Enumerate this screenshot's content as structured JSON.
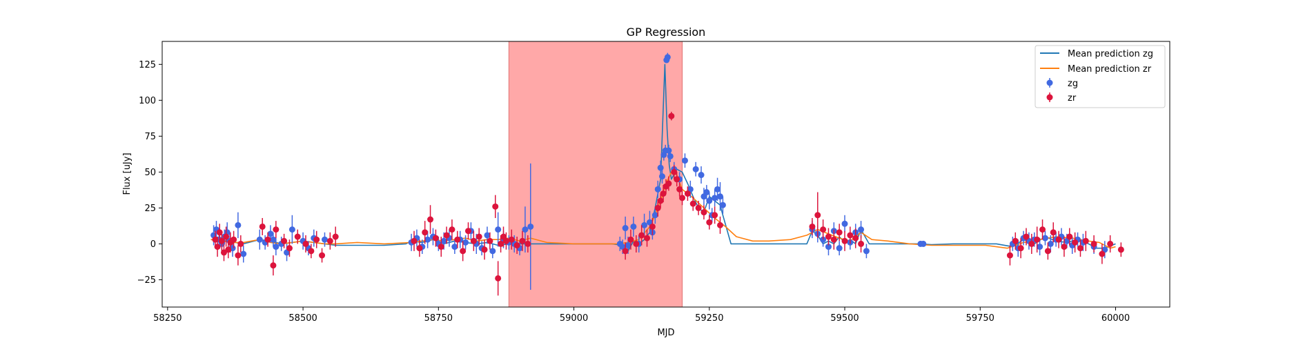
{
  "chart_data": {
    "type": "line",
    "title": "GP Regression",
    "xlabel": "MJD",
    "ylabel": "Flux [uJy]",
    "xlim": [
      58240,
      60100
    ],
    "ylim": [
      -44,
      141
    ],
    "xticks": [
      58250,
      58500,
      58750,
      59000,
      59250,
      59500,
      59750,
      60000
    ],
    "yticks": [
      -25,
      0,
      25,
      50,
      75,
      100,
      125
    ],
    "grid": false,
    "legend_position": "top-right",
    "shaded_region": {
      "x": [
        58880,
        59200
      ],
      "color": "#ffa8a8"
    },
    "series": [
      {
        "name": "Mean prediction zg",
        "kind": "line",
        "color": "#1f77b4",
        "x": [
          58330,
          58360,
          58390,
          58400,
          58420,
          58440,
          58460,
          58480,
          58500,
          58520,
          58540,
          58560,
          58600,
          58650,
          58690,
          58700,
          58720,
          58740,
          58760,
          58780,
          58800,
          58820,
          58840,
          58860,
          58880,
          58900,
          58915,
          58940,
          58980,
          59040,
          59070,
          59090,
          59100,
          59110,
          59120,
          59130,
          59140,
          59150,
          59160,
          59168,
          59172,
          59176,
          59180,
          59190,
          59200,
          59210,
          59220,
          59230,
          59240,
          59250,
          59260,
          59270,
          59275,
          59290,
          59320,
          59400,
          59430,
          59440,
          59450,
          59460,
          59470,
          59480,
          59490,
          59500,
          59510,
          59520,
          59530,
          59545,
          59570,
          59620,
          59640,
          59660,
          59700,
          59780,
          59810,
          59830,
          59850,
          59870,
          59890,
          59910,
          59930,
          59950,
          59965,
          59980,
          60000
        ],
        "y": [
          3,
          2,
          0,
          1,
          3,
          2,
          0,
          1,
          2,
          1,
          0,
          -1,
          -1,
          -1,
          0,
          2,
          1,
          3,
          0,
          2,
          1,
          0,
          1,
          -1,
          0,
          0,
          0,
          0,
          0,
          0,
          0,
          -1,
          -5,
          2,
          0,
          3,
          8,
          25,
          45,
          125,
          80,
          55,
          45,
          52,
          50,
          42,
          33,
          25,
          22,
          33,
          30,
          27,
          20,
          0,
          0,
          0,
          0,
          9,
          6,
          0,
          2,
          0,
          5,
          1,
          3,
          0,
          10,
          0,
          0,
          0,
          0,
          -0.5,
          0,
          0,
          -2,
          3,
          0,
          5,
          2,
          1,
          3,
          0,
          -3,
          -3,
          0
        ]
      },
      {
        "name": "Mean prediction zr",
        "kind": "line",
        "color": "#ff7f0e",
        "x": [
          58330,
          58350,
          58370,
          58390,
          58420,
          58440,
          58460,
          58480,
          58500,
          58520,
          58540,
          58560,
          58600,
          58650,
          58700,
          58720,
          58740,
          58760,
          58780,
          58800,
          58820,
          58840,
          58860,
          58880,
          58900,
          58920,
          58950,
          59000,
          59050,
          59080,
          59100,
          59120,
          59140,
          59150,
          59160,
          59170,
          59180,
          59190,
          59200,
          59220,
          59240,
          59260,
          59280,
          59300,
          59330,
          59360,
          59400,
          59430,
          59450,
          59470,
          59490,
          59510,
          59530,
          59550,
          59580,
          59620,
          59660,
          59700,
          59760,
          59800,
          59830,
          59860,
          59890,
          59920,
          59950,
          59970,
          59990,
          60000
        ],
        "y": [
          3,
          2,
          1,
          1,
          3,
          1,
          0,
          1,
          2,
          1,
          0,
          0,
          1,
          0,
          1,
          2,
          3,
          2,
          3,
          4,
          2,
          3,
          3,
          4,
          2,
          4,
          1,
          0,
          0,
          0,
          1,
          3,
          12,
          20,
          30,
          42,
          50,
          48,
          38,
          32,
          25,
          18,
          12,
          5,
          2,
          2,
          3,
          6,
          10,
          7,
          4,
          2,
          8,
          3,
          2,
          0,
          -1,
          -1,
          -1,
          -3,
          1,
          3,
          5,
          4,
          2,
          1,
          -3,
          -2
        ]
      },
      {
        "name": "zg",
        "kind": "errorbar",
        "color": "#4169e1",
        "x": [
          58335,
          58340,
          58345,
          58350,
          58355,
          58360,
          58365,
          58370,
          58380,
          58390,
          58420,
          58430,
          58440,
          58445,
          58450,
          58460,
          58470,
          58480,
          58500,
          58510,
          58520,
          58540,
          58700,
          58710,
          58720,
          58730,
          58740,
          58750,
          58760,
          58770,
          58780,
          58790,
          58800,
          58810,
          58820,
          58830,
          58840,
          58850,
          58860,
          58870,
          58880,
          58890,
          58900,
          58910,
          58920,
          59085,
          59090,
          59095,
          59100,
          59110,
          59120,
          59130,
          59140,
          59145,
          59150,
          59155,
          59160,
          59163,
          59166,
          59169,
          59171,
          59173,
          59175,
          59178,
          59185,
          59195,
          59205,
          59215,
          59225,
          59235,
          59240,
          59245,
          59250,
          59255,
          59260,
          59265,
          59270,
          59275,
          59440,
          59450,
          59460,
          59470,
          59480,
          59490,
          59500,
          59510,
          59520,
          59530,
          59540,
          59640,
          59645,
          59810,
          59820,
          59830,
          59840,
          59850,
          59860,
          59870,
          59880,
          59890,
          59900,
          59910,
          59920,
          59930,
          59940,
          59960,
          59980
        ],
        "y": [
          6,
          10,
          3,
          0,
          5,
          8,
          2,
          -3,
          13,
          -7,
          3,
          1,
          7,
          3,
          -2,
          0,
          -6,
          10,
          2,
          -3,
          4,
          3,
          1,
          4,
          -2,
          3,
          5,
          0,
          2,
          4,
          -2,
          3,
          1,
          9,
          0,
          -3,
          6,
          -5,
          10,
          3,
          1,
          0,
          -3,
          10,
          12,
          0,
          -2,
          11,
          -1,
          12,
          0,
          13,
          15,
          8,
          20,
          38,
          53,
          47,
          62,
          65,
          128,
          130,
          65,
          61,
          52,
          45,
          58,
          38,
          52,
          48,
          33,
          36,
          30,
          20,
          32,
          38,
          33,
          27,
          10,
          7,
          3,
          -2,
          9,
          -3,
          14,
          1,
          8,
          10,
          -5,
          0,
          0,
          0,
          -3,
          4,
          2,
          3,
          -2,
          4,
          0,
          3,
          5,
          2,
          -1,
          3,
          1,
          -2,
          -4
        ],
        "yerr": [
          7,
          6,
          5,
          6,
          5,
          7,
          5,
          6,
          9,
          6,
          7,
          5,
          6,
          5,
          6,
          5,
          6,
          10,
          6,
          5,
          6,
          5,
          6,
          6,
          5,
          6,
          6,
          5,
          6,
          6,
          5,
          6,
          5,
          6,
          7,
          5,
          6,
          5,
          12,
          6,
          5,
          6,
          5,
          16,
          44,
          5,
          5,
          8,
          6,
          7,
          6,
          8,
          8,
          5,
          6,
          6,
          5,
          5,
          4,
          4,
          2,
          3,
          4,
          4,
          5,
          5,
          5,
          6,
          5,
          6,
          6,
          5,
          6,
          5,
          6,
          8,
          10,
          6,
          6,
          6,
          5,
          6,
          6,
          5,
          6,
          5,
          6,
          6,
          5,
          2,
          2,
          5,
          6,
          5,
          6,
          5,
          6,
          5,
          6,
          5,
          6,
          5,
          6,
          5,
          6,
          5,
          6
        ]
      },
      {
        "name": "zr",
        "kind": "errorbar",
        "color": "#dc143c",
        "x": [
          58338,
          58342,
          58346,
          58350,
          58354,
          58358,
          58362,
          58366,
          58372,
          58380,
          58385,
          58425,
          58435,
          58445,
          58450,
          58465,
          58475,
          58490,
          58505,
          58515,
          58525,
          58535,
          58550,
          58560,
          58705,
          58715,
          58725,
          58735,
          58745,
          58755,
          58765,
          58775,
          58785,
          58795,
          58805,
          58815,
          58825,
          58835,
          58845,
          58855,
          58860,
          58865,
          58870,
          58875,
          58885,
          58895,
          58905,
          58915,
          59095,
          59105,
          59115,
          59125,
          59135,
          59145,
          59155,
          59160,
          59165,
          59170,
          59175,
          59180,
          59185,
          59190,
          59195,
          59200,
          59210,
          59220,
          59230,
          59240,
          59250,
          59260,
          59270,
          59440,
          59450,
          59460,
          59470,
          59480,
          59490,
          59500,
          59510,
          59520,
          59530,
          59805,
          59815,
          59825,
          59835,
          59845,
          59855,
          59865,
          59875,
          59885,
          59895,
          59905,
          59915,
          59925,
          59935,
          59945,
          59960,
          59975,
          59990,
          60010
        ],
        "y": [
          3,
          -2,
          8,
          2,
          -6,
          5,
          -4,
          1,
          3,
          -8,
          0,
          12,
          3,
          -15,
          10,
          2,
          -3,
          5,
          0,
          -5,
          3,
          -8,
          2,
          5,
          2,
          -3,
          8,
          17,
          4,
          -2,
          6,
          10,
          3,
          -5,
          9,
          2,
          5,
          -4,
          2,
          26,
          -24,
          0,
          5,
          2,
          3,
          -1,
          2,
          0,
          -5,
          3,
          0,
          6,
          4,
          12,
          25,
          30,
          35,
          40,
          42,
          89,
          50,
          45,
          38,
          32,
          35,
          28,
          25,
          22,
          15,
          20,
          13,
          12,
          20,
          10,
          5,
          3,
          8,
          2,
          6,
          4,
          0,
          -8,
          2,
          -3,
          5,
          0,
          3,
          10,
          -5,
          8,
          3,
          -2,
          5,
          1,
          -3,
          2,
          0,
          -7,
          0,
          -4
        ],
        "yerr": [
          6,
          7,
          6,
          7,
          6,
          7,
          6,
          7,
          6,
          7,
          6,
          6,
          5,
          7,
          6,
          5,
          6,
          5,
          6,
          5,
          6,
          5,
          6,
          7,
          7,
          6,
          8,
          10,
          6,
          7,
          6,
          7,
          6,
          7,
          6,
          7,
          6,
          7,
          6,
          8,
          12,
          6,
          7,
          6,
          7,
          6,
          7,
          6,
          6,
          7,
          6,
          7,
          6,
          6,
          6,
          5,
          6,
          5,
          5,
          3,
          5,
          5,
          5,
          5,
          5,
          5,
          5,
          5,
          5,
          6,
          6,
          6,
          16,
          7,
          6,
          7,
          6,
          7,
          6,
          7,
          6,
          7,
          6,
          7,
          6,
          7,
          9,
          7,
          6,
          7,
          6,
          7,
          6,
          7,
          6,
          7,
          6,
          7,
          6,
          5
        ]
      }
    ]
  }
}
